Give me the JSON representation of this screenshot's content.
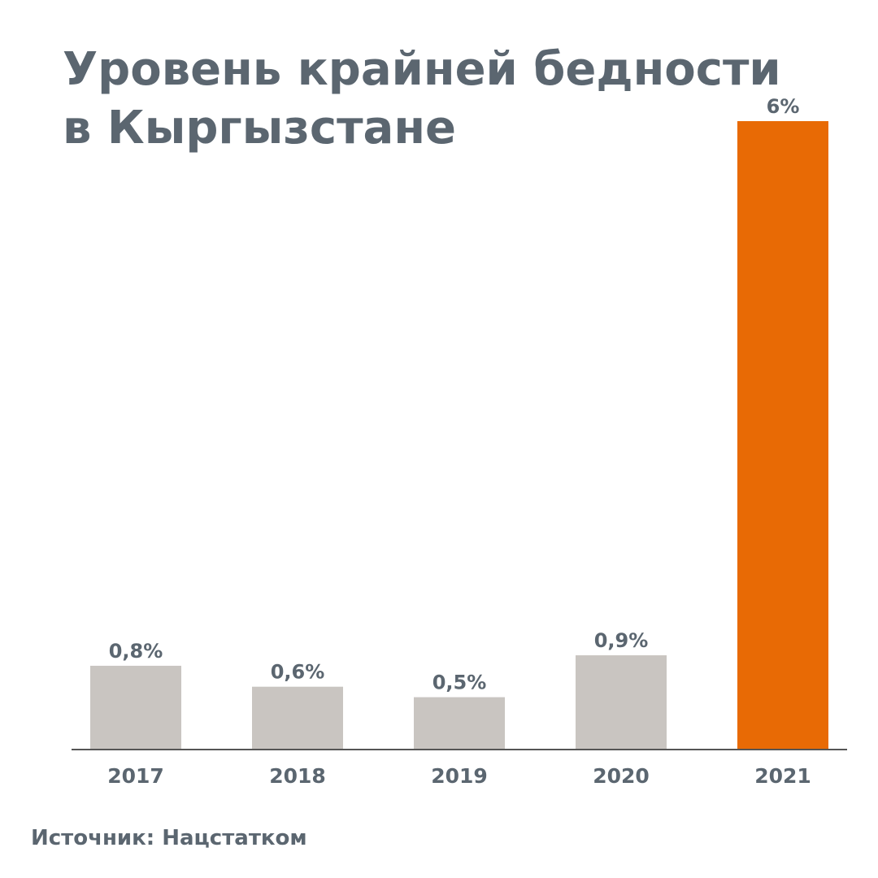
{
  "chart_data": {
    "type": "bar",
    "title": "Уровень крайней бедности в Кыргызстане",
    "categories": [
      "2017",
      "2018",
      "2019",
      "2020",
      "2021"
    ],
    "values": [
      0.8,
      0.6,
      0.5,
      0.9,
      6
    ],
    "value_labels": [
      "0,8%",
      "0,6%",
      "0,5%",
      "0,9%",
      "6%"
    ],
    "colors": [
      "#c9c5c1",
      "#c9c5c1",
      "#c9c5c1",
      "#c9c5c1",
      "#e86a05"
    ],
    "ylim": [
      0,
      6
    ],
    "grid": false,
    "legend": "none",
    "source": "Источник: Нацстатком"
  }
}
